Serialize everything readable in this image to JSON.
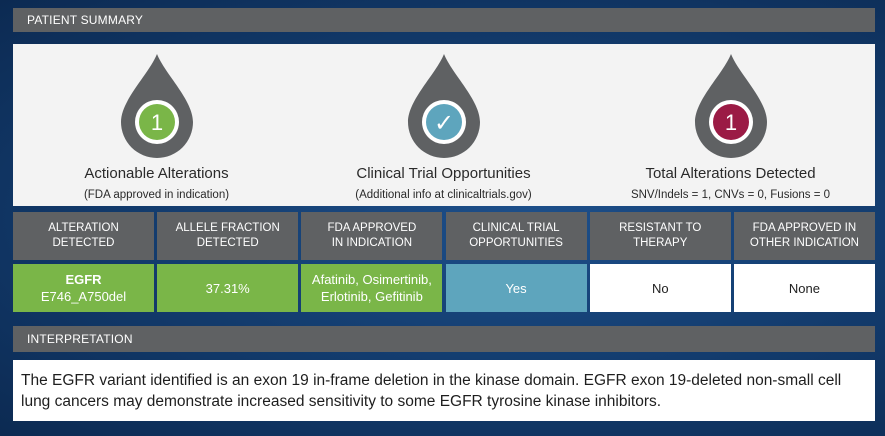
{
  "summary_header": "PATIENT SUMMARY",
  "metrics": [
    {
      "value": "1",
      "title": "Actionable Alterations",
      "subtitle": "(FDA approved in indication)",
      "color": "#7ab648",
      "icon": "number-icon"
    },
    {
      "value": "✓",
      "title": "Clinical Trial Opportunities",
      "subtitle": "(Additional info at clinicaltrials.gov)",
      "color": "#5ea5bd",
      "icon": "checkmark-icon"
    },
    {
      "value": "1",
      "title": "Total Alterations Detected",
      "subtitle": "SNV/Indels = 1, CNVs = 0, Fusions = 0",
      "color": "#9b1b45",
      "icon": "number-icon"
    }
  ],
  "table": {
    "headers": [
      "ALTERATION DETECTED",
      "ALLELE FRACTION\nDETECTED",
      "FDA APPROVED\nIN INDICATION",
      "CLINICAL TRIAL\nOPPORTUNITIES",
      "RESISTANT TO THERAPY",
      "FDA APPROVED IN\nOTHER INDICATION"
    ],
    "row": {
      "gene": "EGFR",
      "variant": "E746_A750del",
      "allele_fraction": "37.31%",
      "fda_approved": "Afatinib, Osimertinib,\nErlotinib, Gefitinib",
      "clinical_trial": "Yes",
      "resistant": "No",
      "fda_other": "None"
    }
  },
  "interpretation_header": "INTERPRETATION",
  "interpretation_text": "The EGFR variant identified is an exon 19 in-frame deletion in the kinase domain. EGFR exon 19-deleted non-small cell lung cancers may demonstrate increased sensitivity to some EGFR tyrosine kinase inhibitors.",
  "colors": {
    "header_gray": "#5f6163",
    "drop_gray": "#5f6163",
    "green": "#7ab648",
    "blue": "#5ea5bd",
    "crimson": "#9b1b45"
  }
}
